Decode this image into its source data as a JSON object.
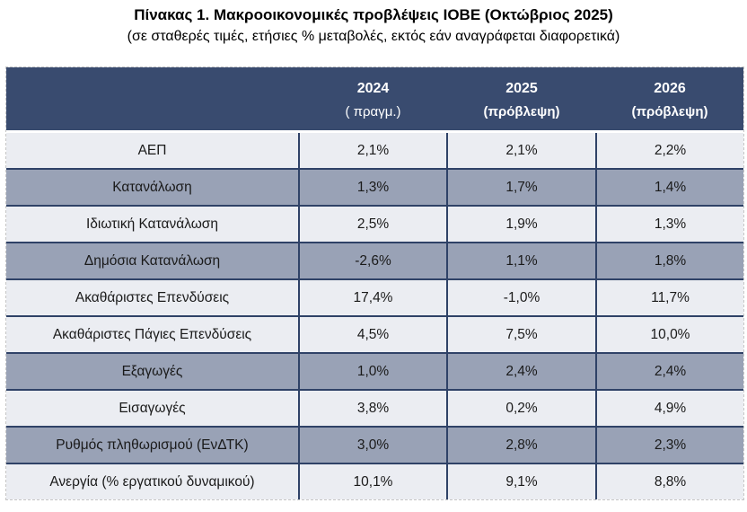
{
  "page": {
    "title": "Πίνακας 1. Μακροοικονομικές προβλέψεις ΙΟΒΕ (Οκτώβριος 2025)",
    "subtitle": "(σε σταθερές τιμές, ετήσιες % μεταβολές, εκτός εάν αναγράφεται διαφορετικά)"
  },
  "colors": {
    "header_bg": "#394B6F",
    "header_text": "#FFFFFF",
    "row_light": "#EBEDF2",
    "row_shaded": "#99A2B6",
    "grid_line": "#2F4267",
    "body_text": "#1A1A1A"
  },
  "table": {
    "columns": [
      {
        "year": "2024",
        "sub": "( πραγμ.)"
      },
      {
        "year": "2025",
        "sub": "(πρόβλεψη)"
      },
      {
        "year": "2026",
        "sub": "(πρόβλεψη)"
      }
    ],
    "rows": [
      {
        "label": "ΑΕΠ",
        "values": [
          "2,1%",
          "2,1%",
          "2,2%"
        ],
        "shaded": false
      },
      {
        "label": "Κατανάλωση",
        "values": [
          "1,3%",
          "1,7%",
          "1,4%"
        ],
        "shaded": true
      },
      {
        "label": "Ιδιωτική Κατανάλωση",
        "values": [
          "2,5%",
          "1,9%",
          "1,3%"
        ],
        "shaded": false
      },
      {
        "label": "Δημόσια Κατανάλωση",
        "values": [
          "-2,6%",
          "1,1%",
          "1,8%"
        ],
        "shaded": true
      },
      {
        "label": "Ακαθάριστες Επενδύσεις",
        "values": [
          "17,4%",
          "-1,0%",
          "11,7%"
        ],
        "shaded": false
      },
      {
        "label": "Ακαθάριστες Πάγιες Επενδύσεις",
        "values": [
          "4,5%",
          "7,5%",
          "10,0%"
        ],
        "shaded": false
      },
      {
        "label": "Εξαγωγές",
        "values": [
          "1,0%",
          "2,4%",
          "2,4%"
        ],
        "shaded": true
      },
      {
        "label": "Εισαγωγές",
        "values": [
          "3,8%",
          "0,2%",
          "4,9%"
        ],
        "shaded": false
      },
      {
        "label": "Ρυθμός πληθωρισμού (ΕνΔΤΚ)",
        "values": [
          "3,0%",
          "2,8%",
          "2,3%"
        ],
        "shaded": true
      },
      {
        "label": "Ανεργία (% εργατικού δυναμικού)",
        "values": [
          "10,1%",
          "9,1%",
          "8,8%"
        ],
        "shaded": false
      }
    ]
  }
}
